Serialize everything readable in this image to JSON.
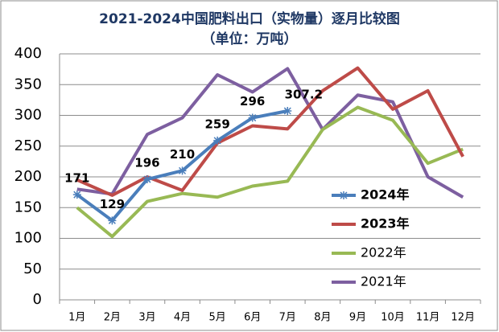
{
  "chart_data": {
    "type": "line",
    "title": "2021-2024中国肥料出口（实物量）逐月比较图",
    "subtitle": "（单位：万吨）",
    "categories": [
      "1月",
      "2月",
      "3月",
      "4月",
      "5月",
      "6月",
      "7月",
      "8月",
      "9月",
      "10月",
      "11月",
      "12月"
    ],
    "series": [
      {
        "name": "2024年",
        "color": "#4a7ebb",
        "marker": "star",
        "data_labels": true,
        "values": [
          171,
          129,
          196,
          210,
          259,
          296,
          307.2,
          null,
          null,
          null,
          null,
          null
        ]
      },
      {
        "name": "2023年",
        "color": "#be4b48",
        "values": [
          195,
          170,
          200,
          178,
          255,
          283,
          278,
          340,
          377,
          310,
          340,
          233
        ]
      },
      {
        "name": "2022年",
        "color": "#98b954",
        "values": [
          150,
          103,
          160,
          173,
          167,
          185,
          193,
          277,
          313,
          292,
          222,
          245
        ]
      },
      {
        "name": "2021年",
        "color": "#7d5fa0",
        "values": [
          180,
          172,
          269,
          296,
          366,
          338,
          376,
          277,
          333,
          322,
          200,
          167
        ]
      }
    ],
    "ylim": [
      0,
      400
    ],
    "yticks": [
      0,
      50,
      100,
      150,
      200,
      250,
      300,
      350,
      400
    ],
    "grid": true,
    "legend": "right"
  }
}
